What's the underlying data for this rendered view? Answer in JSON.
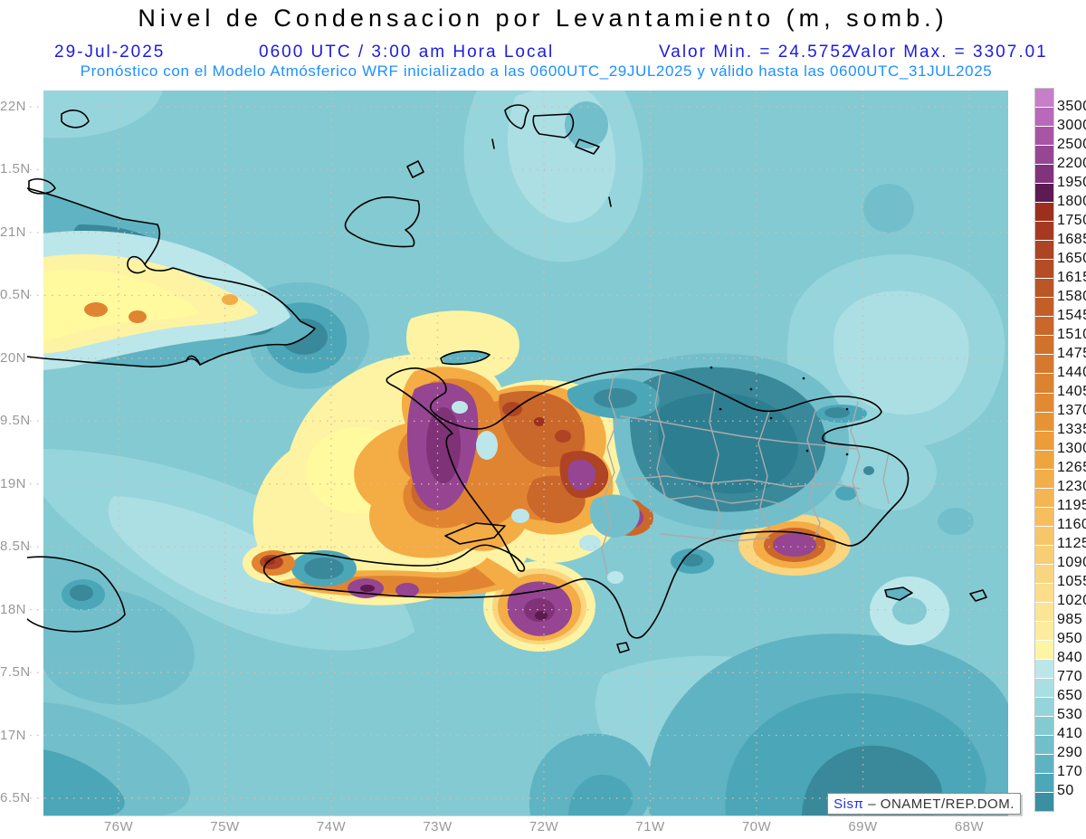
{
  "title": "Nivel de Condensacion por Levantamiento (m, somb.)",
  "header": {
    "date": "29-Jul-2025",
    "time_label": "0600 UTC / 3:00 am Hora Local",
    "min_label": "Valor Min. = 24.5752",
    "max_label": "Valor Max. = 3307.01",
    "model_line": "Pronóstico con el Modelo Atmósferico WRF inicializado a las 0600UTC_29JUL2025 y válido hasta las  0600UTC_31JUL2025"
  },
  "attribution": {
    "brand": "Sisπ",
    "text": "– ONAMET/REP.DOM."
  },
  "chart_data": {
    "type": "heatmap",
    "title": "Nivel de Condensacion por Levantamiento (m, somb.)",
    "variable": "Nivel de Condensacion por Levantamiento (m, somb.)",
    "model": "WRF",
    "run_date": "29-Jul-2025",
    "init": "0600UTC_29JUL2025",
    "valid_until": "0600UTC_31JUL2025",
    "valid_time": "0600 UTC / 3:00 am Hora Local",
    "value_min": 24.5752,
    "value_max": 3307.01,
    "grid": "dotted",
    "legend_position": "right",
    "x_axis": {
      "ticks": [
        "76W",
        "75W",
        "74W",
        "73W",
        "72W",
        "71W",
        "70W",
        "69W",
        "68W"
      ]
    },
    "y_axis": {
      "ticks": [
        "22N",
        "1.5N",
        "21N",
        "0.5N",
        "20N",
        "9.5N",
        "19N",
        "8.5N",
        "18N",
        "7.5N",
        "17N",
        "6.5N"
      ]
    },
    "colorbar": {
      "levels": [
        3500,
        3000,
        2500,
        2200,
        1950,
        1800,
        1750,
        1685,
        1650,
        1615,
        1580,
        1545,
        1510,
        1475,
        1440,
        1405,
        1370,
        1335,
        1300,
        1265,
        1230,
        1195,
        1160,
        1125,
        1090,
        1055,
        1020,
        985,
        950,
        840,
        770,
        650,
        530,
        410,
        290,
        170,
        50
      ],
      "colors": [
        "#C77FC9",
        "#B869B8",
        "#A855A6",
        "#974693",
        "#81337B",
        "#5E1A52",
        "#9E2F1E",
        "#A63A21",
        "#AD4423",
        "#B44D25",
        "#BB5627",
        "#C25F29",
        "#C9682A",
        "#D0712C",
        "#D6792E",
        "#DC8230",
        "#E28A32",
        "#E79335",
        "#EC9C38",
        "#EFA53E",
        "#F2AE48",
        "#F4B653",
        "#F6BE5E",
        "#F7C669",
        "#F8CE74",
        "#FAD580",
        "#FBDD8B",
        "#FCE495",
        "#FDEC9D",
        "#FEF5A4",
        "#BCE7EA",
        "#A9DEE3",
        "#96D4DB",
        "#84CAD2",
        "#71BFCB",
        "#5EB3C2",
        "#4CA8B8",
        "#3A8FA1"
      ]
    }
  },
  "colors": {
    "ocean": "#84CAD2",
    "tealL1": "#97D5DC",
    "tealL2": "#ABDFE4",
    "cyanPale": "#BCE7EA",
    "tealD1": "#72BFCB",
    "tealD2": "#5FB3C2",
    "tealD3": "#4BA7B8",
    "tealD4": "#39899B",
    "tealD5": "#2E7E91",
    "yellowBright": "#FFFA9E",
    "yellowPale": "#FDF3A2",
    "yellowDeep": "#F9D67F",
    "orange1": "#F4AC45",
    "orange2": "#E08432",
    "orange3": "#CA672A",
    "brick": "#AE4423",
    "brickDark": "#9C2F1D",
    "purple1": "#954591",
    "purple2": "#7F3277",
    "maroon": "#5E1A4E",
    "coast": "#000000",
    "admin": "#ABABAB",
    "grid": "#D6BBAE",
    "headerBlue": "#1C1CDF",
    "headerCyan": "#1E90FF",
    "axisGray": "#999999",
    "labelDark": "#111111",
    "brandBlue": "#2233DD",
    "attrText": "#333333"
  }
}
